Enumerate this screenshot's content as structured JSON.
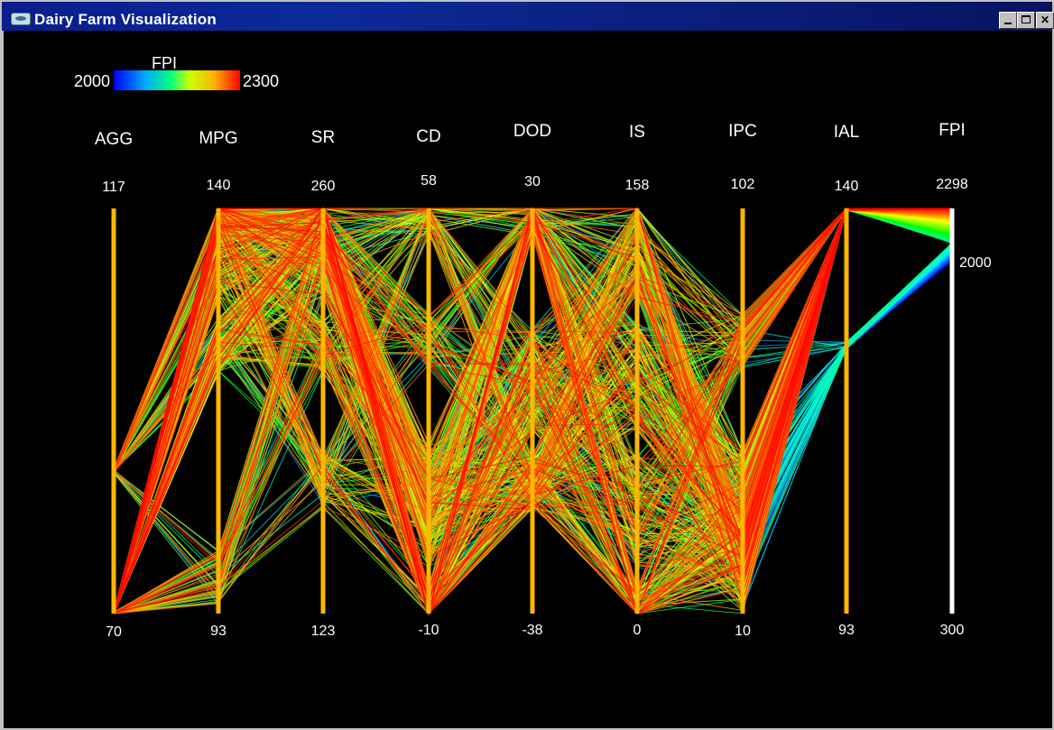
{
  "window": {
    "title": "Dairy Farm Visualization"
  },
  "legend": {
    "label": "FPI",
    "min_label": "2000",
    "max_label": "2300"
  },
  "chart_data": {
    "type": "parallel-coordinates",
    "color_by": "FPI",
    "color_range": [
      2000,
      2300
    ],
    "axes": [
      {
        "name": "AGG",
        "max": 117,
        "min": 70
      },
      {
        "name": "MPG",
        "max": 140,
        "min": 93
      },
      {
        "name": "SR",
        "max": 260,
        "min": 123
      },
      {
        "name": "CD",
        "max": 58,
        "min": -10
      },
      {
        "name": "DOD",
        "max": 30,
        "min": -38
      },
      {
        "name": "IS",
        "max": 158,
        "min": 0
      },
      {
        "name": "IPC",
        "max": 102,
        "min": 10
      },
      {
        "name": "IAL",
        "max": 140,
        "min": 93
      },
      {
        "name": "FPI",
        "max": 2298,
        "min": 300,
        "extra_tick": 2000
      }
    ],
    "axis_colors": {
      "default": "#ffb700",
      "last": "#ffffff"
    },
    "record_count": 600
  }
}
